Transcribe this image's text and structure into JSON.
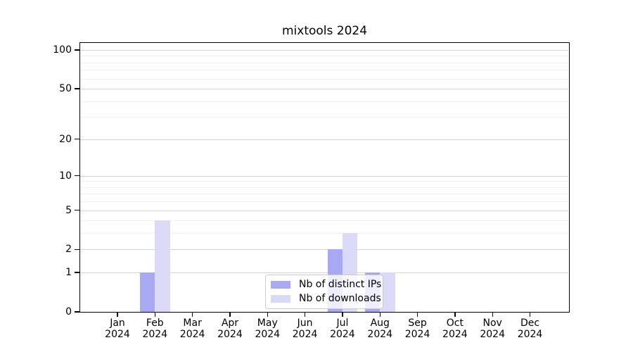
{
  "chart_data": {
    "type": "bar",
    "title": "mixtools 2024",
    "categories": [
      "Jan",
      "Feb",
      "Mar",
      "Apr",
      "May",
      "Jun",
      "Jul",
      "Aug",
      "Sep",
      "Oct",
      "Nov",
      "Dec"
    ],
    "x_year_label": "2024",
    "series": [
      {
        "name": "Nb of distinct IPs",
        "key": "distinct-ips",
        "color": "#a9a9f3",
        "values": [
          0,
          1,
          0,
          0,
          0,
          0,
          2,
          1,
          0,
          0,
          0,
          0
        ]
      },
      {
        "name": "Nb of downloads",
        "key": "downloads",
        "color": "#dadaf8",
        "values": [
          0,
          4,
          0,
          0,
          0,
          0,
          3,
          1,
          0,
          0,
          0,
          0
        ]
      }
    ],
    "y_axis": {
      "scale": "log10(1+x)",
      "major_ticks": [
        0,
        1,
        2,
        5,
        10,
        20,
        50,
        100
      ],
      "minor_gridlines": [
        3,
        4,
        6,
        7,
        8,
        9,
        30,
        40,
        60,
        70,
        80,
        90
      ],
      "range_top": 115
    },
    "xlabel": "",
    "ylabel": "",
    "grid": true,
    "legend_position": "lower center",
    "colors": {
      "major_grid": "#d4d4d4",
      "minor_grid": "#efefef",
      "spine": "#000000",
      "background": "#ffffff"
    }
  }
}
